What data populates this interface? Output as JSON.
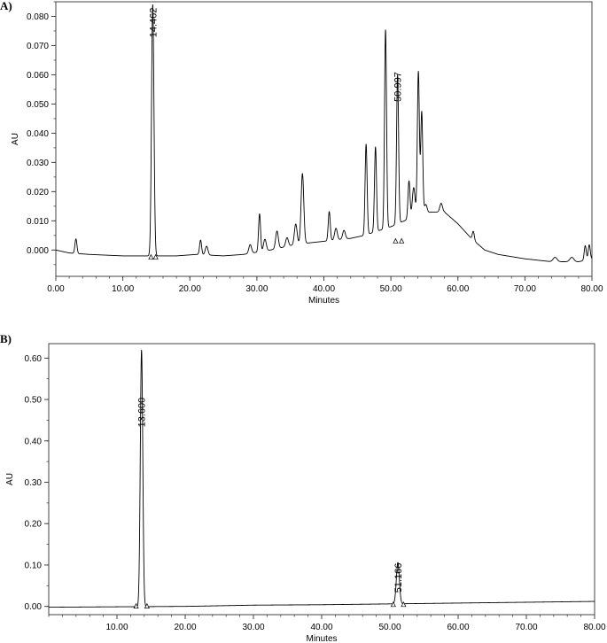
{
  "chart_data": [
    {
      "panel_label": "A)",
      "type": "line",
      "xlabel": "Minutes",
      "ylabel": "AU",
      "xlim": [
        0,
        80
      ],
      "ylim": [
        -0.009,
        0.085
      ],
      "x_ticks": [
        "0.00",
        "10.00",
        "20.00",
        "30.00",
        "40.00",
        "50.00",
        "60.00",
        "70.00",
        "80.00"
      ],
      "y_ticks": [
        "0.000",
        "0.010",
        "0.020",
        "0.030",
        "0.040",
        "0.050",
        "0.060",
        "0.070",
        "0.080"
      ],
      "baseline": [
        [
          0,
          0
        ],
        [
          2,
          -0.001
        ],
        [
          5,
          -0.0015
        ],
        [
          10,
          -0.002
        ],
        [
          13,
          -0.002
        ],
        [
          18,
          -0.002
        ],
        [
          21,
          -0.0015
        ],
        [
          25,
          -0.002
        ],
        [
          28,
          -0.0015
        ],
        [
          32,
          0.0
        ],
        [
          36,
          0.002
        ],
        [
          40,
          0.003
        ],
        [
          44,
          0.004
        ],
        [
          46,
          0.005
        ],
        [
          50,
          0.008
        ],
        [
          52,
          0.01
        ],
        [
          54,
          0.012
        ],
        [
          56,
          0.013
        ],
        [
          58,
          0.013
        ],
        [
          60,
          0.009
        ],
        [
          62,
          0.004
        ],
        [
          64,
          0.0
        ],
        [
          66,
          -0.0015
        ],
        [
          70,
          -0.003
        ],
        [
          74,
          -0.004
        ],
        [
          78,
          -0.004
        ],
        [
          80,
          -0.003
        ]
      ],
      "peaks": [
        {
          "rt": 3.0,
          "height": 0.005,
          "width": 0.15
        },
        {
          "rt": 14.462,
          "height": 0.086,
          "width": 0.18
        },
        {
          "rt": 21.6,
          "height": 0.005,
          "width": 0.15
        },
        {
          "rt": 22.5,
          "height": 0.003,
          "width": 0.2
        },
        {
          "rt": 29.0,
          "height": 0.003,
          "width": 0.2
        },
        {
          "rt": 30.4,
          "height": 0.013,
          "width": 0.15
        },
        {
          "rt": 31.2,
          "height": 0.004,
          "width": 0.2
        },
        {
          "rt": 33.0,
          "height": 0.006,
          "width": 0.2
        },
        {
          "rt": 34.5,
          "height": 0.003,
          "width": 0.2
        },
        {
          "rt": 35.8,
          "height": 0.007,
          "width": 0.2
        },
        {
          "rt": 36.8,
          "height": 0.024,
          "width": 0.2
        },
        {
          "rt": 40.8,
          "height": 0.01,
          "width": 0.15
        },
        {
          "rt": 41.8,
          "height": 0.004,
          "width": 0.2
        },
        {
          "rt": 43.0,
          "height": 0.003,
          "width": 0.2
        },
        {
          "rt": 46.3,
          "height": 0.031,
          "width": 0.15
        },
        {
          "rt": 47.7,
          "height": 0.029,
          "width": 0.15
        },
        {
          "rt": 49.2,
          "height": 0.068,
          "width": 0.15
        },
        {
          "rt": 50.997,
          "height": 0.051,
          "width": 0.15
        },
        {
          "rt": 52.7,
          "height": 0.013,
          "width": 0.15
        },
        {
          "rt": 53.4,
          "height": 0.01,
          "width": 0.2
        },
        {
          "rt": 54.1,
          "height": 0.049,
          "width": 0.15
        },
        {
          "rt": 54.6,
          "height": 0.035,
          "width": 0.15
        },
        {
          "rt": 55.2,
          "height": 0.003,
          "width": 0.2
        },
        {
          "rt": 57.5,
          "height": 0.003,
          "width": 0.2
        },
        {
          "rt": 62.3,
          "height": 0.003,
          "width": 0.15
        },
        {
          "rt": 74.5,
          "height": 0.0015,
          "width": 0.3
        },
        {
          "rt": 77.0,
          "height": 0.0015,
          "width": 0.3
        },
        {
          "rt": 79.0,
          "height": 0.005,
          "width": 0.15
        },
        {
          "rt": 79.6,
          "height": 0.005,
          "width": 0.15
        }
      ],
      "peak_labels": [
        {
          "rt": 14.462,
          "text": "14.462",
          "y": 0.083
        },
        {
          "rt": 50.997,
          "text": "50.997",
          "y": 0.061
        }
      ],
      "integration_marks": [
        {
          "rt": 14.2,
          "y": -0.0025
        },
        {
          "rt": 14.9,
          "y": -0.0025
        },
        {
          "rt": 50.7,
          "y": 0.003
        },
        {
          "rt": 51.6,
          "y": 0.003
        }
      ]
    },
    {
      "panel_label": "B)",
      "type": "line",
      "xlabel": "Minutes",
      "ylabel": "AU",
      "xlim": [
        0,
        80
      ],
      "ylim": [
        -0.02,
        0.635
      ],
      "x_ticks": [
        "10.00",
        "20.00",
        "30.00",
        "40.00",
        "50.00",
        "60.00",
        "70.00",
        "80.00"
      ],
      "y_ticks": [
        "0.00",
        "0.10",
        "0.20",
        "0.30",
        "0.40",
        "0.50",
        "0.60"
      ],
      "baseline": [
        [
          0,
          -0.002
        ],
        [
          10,
          -0.001
        ],
        [
          20,
          0.0
        ],
        [
          30,
          0.003
        ],
        [
          40,
          0.004
        ],
        [
          50,
          0.006
        ],
        [
          60,
          0.008
        ],
        [
          70,
          0.01
        ],
        [
          80,
          0.012
        ]
      ],
      "peaks": [
        {
          "rt": 13.6,
          "height": 0.62,
          "width": 0.18
        },
        {
          "rt": 51.166,
          "height": 0.1,
          "width": 0.22
        }
      ],
      "peak_labels": [
        {
          "rt": 13.6,
          "text": "13.600",
          "y": 0.505
        },
        {
          "rt": 51.166,
          "text": "51.166",
          "y": 0.105
        }
      ],
      "integration_marks": [
        {
          "rt": 12.8,
          "y": 0.0
        },
        {
          "rt": 14.4,
          "y": 0.0
        },
        {
          "rt": 50.5,
          "y": 0.004
        },
        {
          "rt": 52.0,
          "y": 0.004
        }
      ]
    }
  ]
}
